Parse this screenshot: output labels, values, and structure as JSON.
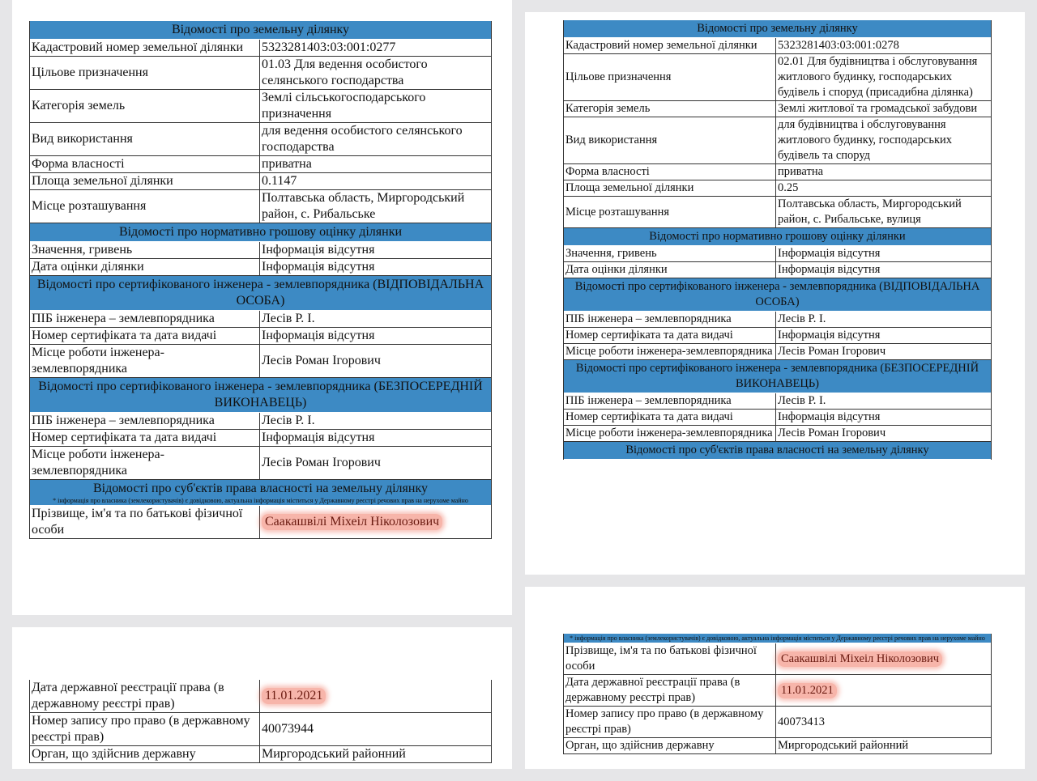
{
  "panels": [
    {
      "pages": [
        {
          "blocks": [
            {
              "title": "Відомості про земельну ділянку"
            },
            {
              "label": "Кадастровий номер земельної ділянки",
              "value": "5323281403:03:001:0277"
            },
            {
              "label": "Цільове призначення",
              "value": "01.03 Для ведення особистого селянського господарства"
            },
            {
              "label": "Категорія земель",
              "value": "Землі сільськогосподарського призначення"
            },
            {
              "label": "Вид використання",
              "value": "для ведення особистого селянського господарства"
            },
            {
              "label": "Форма власності",
              "value": "приватна"
            },
            {
              "label": "Площа земельної ділянки",
              "value": "0.1147"
            },
            {
              "label": "Місце розташування",
              "value": "Полтавська область, Миргородський район, с. Рибальське"
            },
            {
              "title": "Відомості про нормативно грошову оцінку ділянки"
            },
            {
              "label": "Значення, гривень",
              "value": "Інформація відсутня"
            },
            {
              "label": "Дата оцінки ділянки",
              "value": "Інформація відсутня"
            },
            {
              "title": "Відомості про сертифікованого інженера - землевпорядника (ВІДПОВІДАЛЬНА ОСОБА)"
            },
            {
              "label": "ПІБ інженера – землевпорядника",
              "value": "Лесів Р. І."
            },
            {
              "label": "Номер сертифіката та дата видачі",
              "value": "Інформація відсутня"
            },
            {
              "label": "Місце роботи інженера-землевпорядника",
              "value": "Лесів Роман Ігорович"
            },
            {
              "title": "Відомості про сертифікованого інженера - землевпорядника (БЕЗПОСЕРЕДНІЙ ВИКОНАВЕЦЬ)"
            },
            {
              "label": "ПІБ інженера – землевпорядника",
              "value": "Лесів Р. І."
            },
            {
              "label": "Номер сертифіката та дата видачі",
              "value": "Інформація відсутня"
            },
            {
              "label": "Місце роботи інженера-землевпорядника",
              "value": "Лесів Роман Ігорович"
            },
            {
              "title": "Відомості про суб'єктів права власності на земельну ділянку",
              "note": "* інформація про власника (землекористувачів) є довідковою, актуальна інформація міститься у Державному реєстрі речових прав на нерухоме майно"
            },
            {
              "label": "Прізвище, ім'я та по батькові фізичної особи",
              "value": "Саакашвілі Міхеіл Ніколозович",
              "highlight": true
            }
          ]
        },
        {
          "blocks": [
            {
              "label": "Дата державної реєстрації права (в державному реєстрі прав)",
              "value": "11.01.2021",
              "highlight": true
            },
            {
              "label": "Номер запису про право (в державному реєстрі прав)",
              "value": "40073944"
            },
            {
              "label": "Орган, що здійснив державну",
              "value": "Миргородський районний"
            }
          ]
        }
      ]
    },
    {
      "pages": [
        {
          "blocks": [
            {
              "title": "Відомості про земельну ділянку"
            },
            {
              "label": "Кадастровий номер земельної ділянки",
              "value": "5323281403:03:001:0278"
            },
            {
              "label": "Цільове призначення",
              "value": "02.01 Для будівництва і обслуговування житлового будинку, господарських будівель і споруд (присадибна ділянка)"
            },
            {
              "label": "Категорія земель",
              "value": "Землі житлової та громадської забудови"
            },
            {
              "label": "Вид використання",
              "value": "для будівництва і обслуговування житлового будинку, господарських будівель та споруд"
            },
            {
              "label": "Форма власності",
              "value": "приватна"
            },
            {
              "label": "Площа земельної ділянки",
              "value": "0.25"
            },
            {
              "label": "Місце розташування",
              "value": "Полтавська область, Миргородський район, с. Рибальське, вулиця"
            },
            {
              "title": "Відомості про нормативно грошову оцінку ділянки"
            },
            {
              "label": "Значення, гривень",
              "value": "Інформація відсутня"
            },
            {
              "label": "Дата оцінки ділянки",
              "value": "Інформація відсутня"
            },
            {
              "title": "Відомості про сертифікованого інженера - землевпорядника (ВІДПОВІДАЛЬНА ОСОБА)"
            },
            {
              "label": "ПІБ інженера – землевпорядника",
              "value": "Лесів Р. І."
            },
            {
              "label": "Номер сертифіката та дата видачі",
              "value": "Інформація відсутня"
            },
            {
              "label": "Місце роботи інженера-землевпорядника",
              "value": "Лесів Роман Ігорович"
            },
            {
              "title": "Відомості про сертифікованого інженера - землевпорядника (БЕЗПОСЕРЕДНІЙ ВИКОНАВЕЦЬ)"
            },
            {
              "label": "ПІБ інженера – землевпорядника",
              "value": "Лесів Р. І."
            },
            {
              "label": "Номер сертифіката та дата видачі",
              "value": "Інформація відсутня"
            },
            {
              "label": "Місце роботи інженера-землевпорядника",
              "value": "Лесів Роман Ігорович"
            },
            {
              "title": "Відомості про суб'єктів права власності на земельну ділянку"
            }
          ]
        },
        {
          "blocks": [
            {
              "note": "* інформація про власника (землекористувачів) є довідковою, актуальна інформація міститься у Державному реєстрі речових прав на нерухоме майно"
            },
            {
              "label": "Прізвище, ім'я та по батькові фізичної особи",
              "value": "Саакашвілі Міхеіл Ніколозович",
              "highlight": true
            },
            {
              "label": "Дата державної реєстрації права (в державному реєстрі прав)",
              "value": "11.01.2021",
              "highlight": true
            },
            {
              "label": "Номер запису про право (в державному реєстрі прав)",
              "value": "40073413"
            },
            {
              "label": "Орган, що здійснив державну",
              "value": "Миргородський районний"
            }
          ]
        }
      ]
    }
  ]
}
